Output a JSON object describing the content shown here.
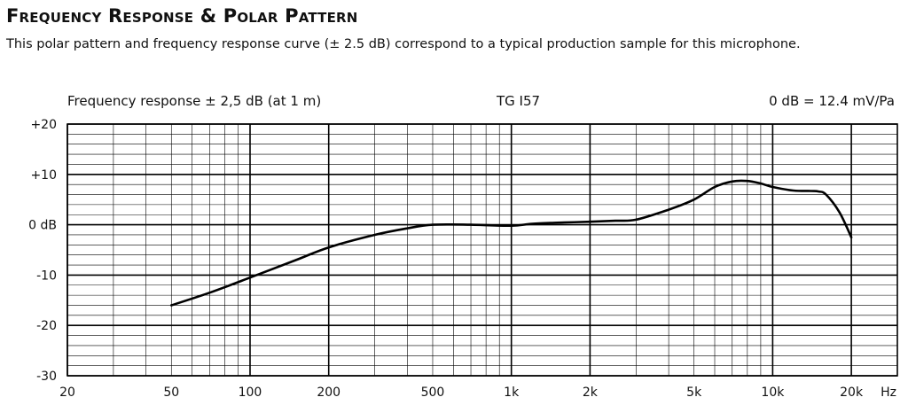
{
  "header": {
    "title": "Frequency Response & Polar Pattern",
    "subtitle": "This polar pattern and frequency response curve (± 2.5 dB) correspond to a typical production sample for this microphone."
  },
  "chart_captions": {
    "left": "Frequency response ± 2,5 dB (at 1 m)",
    "center": "TG I57",
    "right": "0 dB = 12.4 mV/Pa"
  },
  "chart_data": {
    "type": "line",
    "xscale": "log",
    "xlim": [
      20,
      30000
    ],
    "ylim": [
      -30,
      20
    ],
    "grid": true,
    "x_ticks": [
      {
        "value": 20,
        "label": "20"
      },
      {
        "value": 50,
        "label": "50"
      },
      {
        "value": 100,
        "label": "100"
      },
      {
        "value": 200,
        "label": "200"
      },
      {
        "value": 500,
        "label": "500"
      },
      {
        "value": 1000,
        "label": "1k"
      },
      {
        "value": 2000,
        "label": "2k"
      },
      {
        "value": 5000,
        "label": "5k"
      },
      {
        "value": 10000,
        "label": "10k"
      },
      {
        "value": 20000,
        "label": "20k"
      }
    ],
    "x_unit_label": "Hz",
    "y_ticks": [
      {
        "value": 20,
        "label": "+20"
      },
      {
        "value": 10,
        "label": "+10"
      },
      {
        "value": 0,
        "label": "0 dB"
      },
      {
        "value": -10,
        "label": "-10"
      },
      {
        "value": -20,
        "label": "-20"
      },
      {
        "value": -30,
        "label": "-30"
      }
    ],
    "series": [
      {
        "x": [
          50,
          70,
          100,
          150,
          200,
          300,
          400,
          500,
          700,
          1000,
          1200,
          1500,
          2000,
          2500,
          3000,
          4000,
          5000,
          6000,
          7000,
          8000,
          9000,
          10000,
          12000,
          14000,
          15000,
          16000,
          18000,
          20000
        ],
        "y": [
          -16,
          -13.5,
          -10.5,
          -7,
          -4.5,
          -2,
          -0.7,
          0,
          0,
          -0.2,
          0.2,
          0.4,
          0.6,
          0.8,
          1,
          3,
          5,
          7.5,
          8.6,
          8.7,
          8.2,
          7.5,
          6.8,
          6.7,
          6.6,
          6,
          2.5,
          -2.5
        ]
      }
    ]
  }
}
